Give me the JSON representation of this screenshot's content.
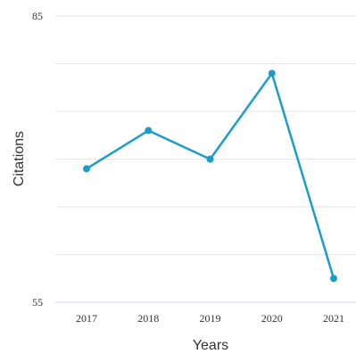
{
  "chart_data": {
    "type": "line",
    "title": "",
    "xlabel": "Years",
    "ylabel": "Citations",
    "categories": [
      "2017",
      "2018",
      "2019",
      "2020",
      "2021"
    ],
    "series": [
      {
        "values": [
          69,
          73,
          70,
          79,
          57.5
        ]
      }
    ],
    "ylim": [
      55,
      85
    ],
    "ytick_labels": [
      "55",
      "85"
    ],
    "grid": true,
    "grid_lines": 6,
    "colors": {
      "series": "#1a9ec9",
      "grid": "#e6e6e6",
      "axis": "#cfd3e8"
    }
  }
}
